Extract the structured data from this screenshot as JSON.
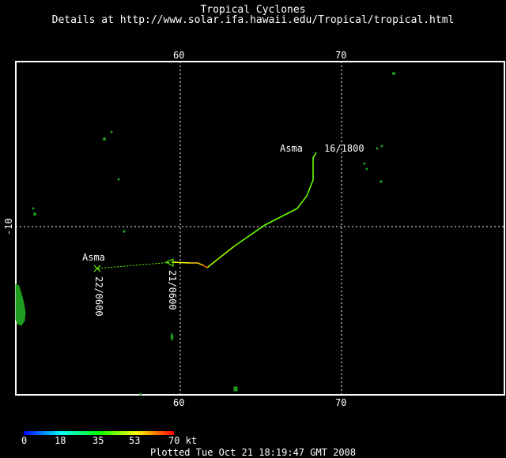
{
  "header": {
    "title": "Tropical Cyclones",
    "subtitle": "Details at http://www.solar.ifa.hawaii.edu/Tropical/tropical.html"
  },
  "map": {
    "lon_ticks_top": [
      "60",
      "70"
    ],
    "lon_ticks_bottom": [
      "60",
      "70"
    ],
    "lat_ticks_left": [
      "-10"
    ],
    "grid": "dotted",
    "colors": {
      "frame": "#ffffff",
      "land": "#1f9b1f",
      "background": "#000000"
    }
  },
  "storm": {
    "name_start": "Asma",
    "name_end": "Asma",
    "time_start": "16/1800",
    "time_mid": "21/0600",
    "time_end": "22/0600"
  },
  "legend": {
    "ticks": [
      "0",
      "18",
      "35",
      "53",
      "70 kt"
    ],
    "colors": [
      "#0000ff",
      "#00ffff",
      "#00ff00",
      "#ffff00",
      "#ff0000"
    ]
  },
  "footer": {
    "text": "Plotted Tue Oct 21 18:19:47 GMT 2008"
  }
}
